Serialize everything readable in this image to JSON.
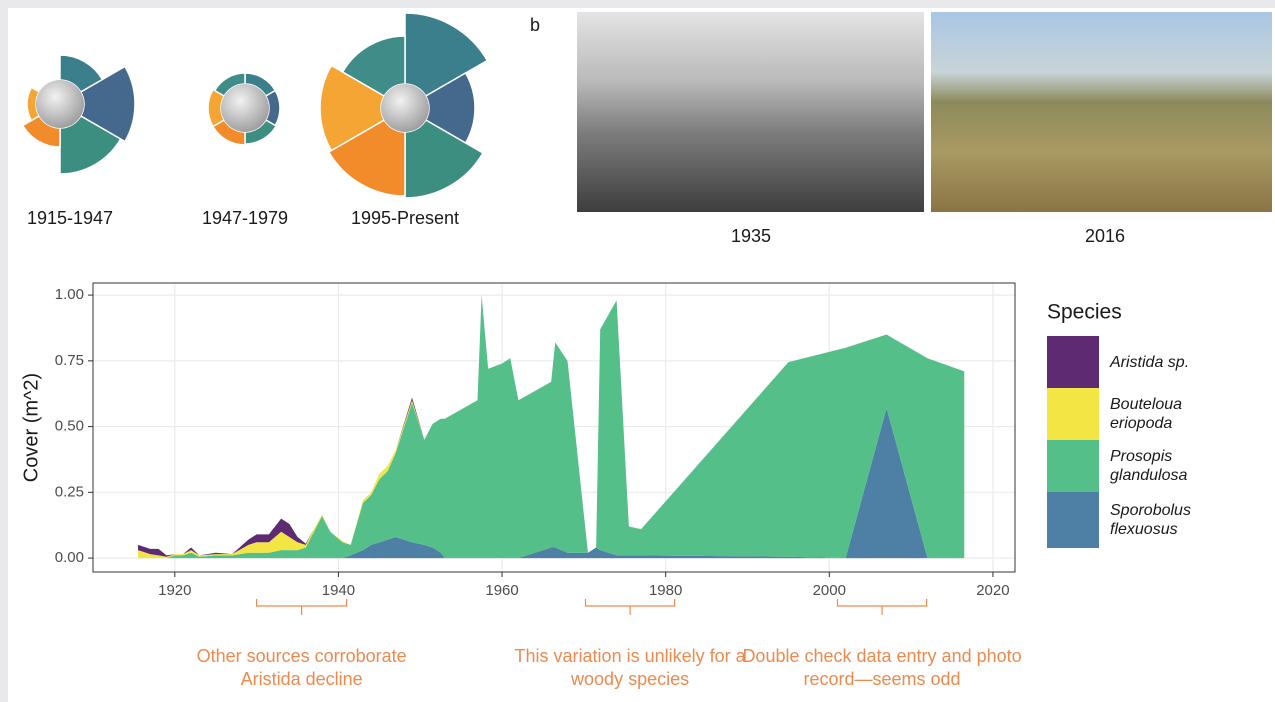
{
  "panel_label": "b",
  "photos": [
    {
      "caption": "1935"
    },
    {
      "caption": "2016"
    }
  ],
  "chart_data": [
    {
      "type": "radial",
      "rlim": [
        0,
        100
      ],
      "hub_color": "#bdbdbd",
      "colors": [
        "#3b7f8c",
        "#44698d",
        "#3c8f80",
        "#f28c2b",
        "#f5a533",
        "#3f8c88"
      ],
      "glyphs": [
        {
          "label": "1915-1947",
          "values": [
            49,
            75,
            70,
            43,
            33,
            0
          ]
        },
        {
          "label": "1947-1979",
          "values": [
            35,
            35,
            36,
            37,
            37,
            35
          ]
        },
        {
          "label": "1995-Present",
          "values": [
            95,
            70,
            90,
            88,
            85,
            72
          ]
        }
      ]
    },
    {
      "type": "stacked-area",
      "y_label": "Cover (m^2)",
      "legend_title": "Species",
      "xlim": [
        1910,
        2022.7
      ],
      "ylim": [
        -0.053,
        1.046
      ],
      "xticks": [
        1920,
        1940,
        1960,
        1980,
        2000,
        2020
      ],
      "yticks": [
        {
          "value": 0,
          "label": "0.00"
        },
        {
          "value": 0.25,
          "label": "0.25"
        },
        {
          "value": 0.5,
          "label": "0.50"
        },
        {
          "value": 0.75,
          "label": "0.75"
        },
        {
          "value": 1,
          "label": "1.00"
        }
      ],
      "grid": true,
      "x": [
        1915.5,
        1917,
        1918,
        1919,
        1920,
        1921,
        1922,
        1923,
        1925,
        1927,
        1929,
        1930,
        1931.5,
        1933,
        1934,
        1935,
        1936,
        1937,
        1938,
        1939,
        1940.5,
        1941.5,
        1943,
        1944,
        1945,
        1946,
        1947,
        1949,
        1950.5,
        1951.5,
        1952.5,
        1953,
        1957,
        1957.5,
        1958.3,
        1960,
        1961,
        1962,
        1966,
        1966.5,
        1968,
        1970.5,
        1971.5,
        1972,
        1974,
        1975.5,
        1977,
        1995,
        2002,
        2007,
        2012,
        2016.5
      ],
      "series": [
        {
          "name": "Aristida sp.",
          "color": "#5e2a72",
          "values": [
            0.02,
            0.02,
            0.025,
            0.005,
            0,
            0,
            0.01,
            0,
            0.005,
            0,
            0.02,
            0.03,
            0.03,
            0.05,
            0.05,
            0.02,
            0.005,
            0,
            0,
            0,
            0,
            0,
            0,
            0,
            0,
            0,
            0,
            0.01,
            0,
            0,
            0,
            0,
            0,
            0,
            0,
            0,
            0,
            0,
            0,
            0,
            0,
            0,
            0,
            0,
            0,
            0,
            0,
            0,
            0,
            0,
            0,
            0
          ]
        },
        {
          "name": "Bouteloua eriopoda",
          "color": "#f2e544",
          "values": [
            0.03,
            0.015,
            0.01,
            0.005,
            0.005,
            0.005,
            0.01,
            0.005,
            0.005,
            0.005,
            0.03,
            0.04,
            0.04,
            0.07,
            0.05,
            0.03,
            0.01,
            0.01,
            0.005,
            0,
            0.005,
            0,
            0.01,
            0.01,
            0.02,
            0.02,
            0.01,
            0.01,
            0,
            0,
            0,
            0,
            0,
            0,
            0,
            0,
            0,
            0,
            0,
            0,
            0,
            0,
            0,
            0,
            0,
            0,
            0,
            0,
            0,
            0,
            0,
            0
          ]
        },
        {
          "name": "Prosopis glandulosa",
          "color": "#55bf8a",
          "values": [
            0,
            0,
            0,
            0,
            0.01,
            0.01,
            0.02,
            0.005,
            0.01,
            0.01,
            0.02,
            0.02,
            0.02,
            0.03,
            0.03,
            0.03,
            0.04,
            0.1,
            0.16,
            0.1,
            0.06,
            0.04,
            0.18,
            0.19,
            0.24,
            0.26,
            0.32,
            0.53,
            0.4,
            0.47,
            0.51,
            0.53,
            0.6,
            1.0,
            0.72,
            0.74,
            0.76,
            0.6,
            0.63,
            0.78,
            0.73,
            0,
            0,
            0.84,
            0.97,
            0.11,
            0.1,
            0.74,
            0.8,
            0.28,
            0.76,
            0.71
          ]
        },
        {
          "name": "Sporobolus flexuosus",
          "color": "#4d80a4",
          "values": [
            0,
            0,
            0,
            0,
            0,
            0,
            0,
            0,
            0,
            0,
            0,
            0,
            0,
            0,
            0,
            0,
            0,
            0,
            0,
            0,
            0,
            0.01,
            0.03,
            0.05,
            0.06,
            0.07,
            0.08,
            0.06,
            0.05,
            0.04,
            0.02,
            0,
            0,
            0,
            0,
            0,
            0,
            0,
            0.04,
            0.04,
            0.02,
            0.02,
            0.04,
            0.03,
            0.01,
            0.01,
            0.01,
            0.005,
            0,
            0.57,
            0,
            0
          ]
        }
      ],
      "annotations": [
        {
          "text": "Other sources corroborate Aristida decline",
          "x": [
            1930,
            1941
          ]
        },
        {
          "text": "This variation is unlikely for a woody species",
          "x": [
            1970.2,
            1981.1
          ]
        },
        {
          "text": "Double check data entry and photo record—seems odd",
          "x": [
            2001,
            2011.9
          ]
        }
      ]
    }
  ]
}
